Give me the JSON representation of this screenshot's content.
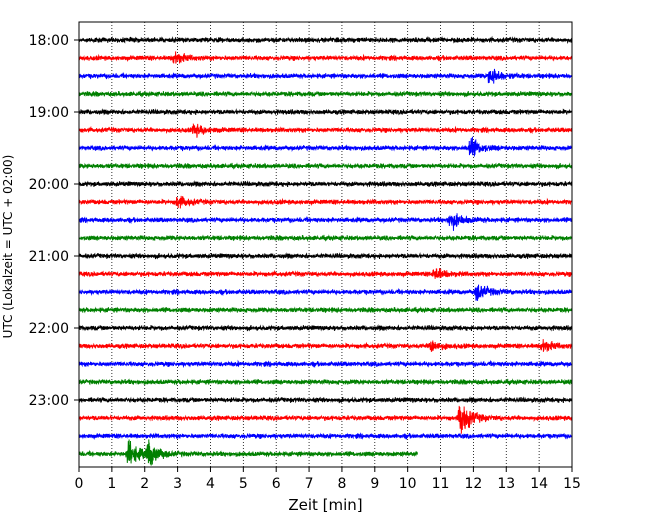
{
  "chart_data": {
    "type": "line",
    "title": "",
    "xlabel": "Zeit  [min]",
    "ylabel": "UTC (Lokalzeit = UTC + 02:00)",
    "xlim": [
      0,
      15
    ],
    "xticks": [
      0,
      1,
      2,
      3,
      4,
      5,
      6,
      7,
      8,
      9,
      10,
      11,
      12,
      13,
      14,
      15
    ],
    "xtick_labels": [
      "0",
      "1",
      "2",
      "3",
      "4",
      "5",
      "6",
      "7",
      "8",
      "9",
      "10",
      "11",
      "12",
      "13",
      "14",
      "15"
    ],
    "yticks": [
      {
        "row": 0,
        "label": "18:00"
      },
      {
        "row": 4,
        "label": "19:00"
      },
      {
        "row": 8,
        "label": "20:00"
      },
      {
        "row": 12,
        "label": "21:00"
      },
      {
        "row": 16,
        "label": "22:00"
      },
      {
        "row": 20,
        "label": "23:00"
      }
    ],
    "grid": "vertical dotted",
    "row_colors": [
      "#000000",
      "#ff0000",
      "#0000ff",
      "#008000"
    ],
    "trace_interval_min": 15,
    "rows": [
      {
        "start_utc": "18:00",
        "end_min": 15,
        "events": []
      },
      {
        "start_utc": "18:15",
        "end_min": 15,
        "events": [
          {
            "t": 2.9,
            "amp": 1.2
          }
        ]
      },
      {
        "start_utc": "18:30",
        "end_min": 15,
        "events": [
          {
            "t": 12.5,
            "amp": 1.8
          }
        ]
      },
      {
        "start_utc": "18:45",
        "end_min": 15,
        "events": []
      },
      {
        "start_utc": "19:00",
        "end_min": 15,
        "events": []
      },
      {
        "start_utc": "19:15",
        "end_min": 15,
        "events": [
          {
            "t": 3.5,
            "amp": 1.2
          }
        ]
      },
      {
        "start_utc": "19:30",
        "end_min": 15,
        "events": [
          {
            "t": 11.9,
            "amp": 1.8
          }
        ]
      },
      {
        "start_utc": "19:45",
        "end_min": 15,
        "events": []
      },
      {
        "start_utc": "20:00",
        "end_min": 15,
        "events": []
      },
      {
        "start_utc": "20:15",
        "end_min": 15,
        "events": [
          {
            "t": 3.0,
            "amp": 1.1
          }
        ]
      },
      {
        "start_utc": "20:30",
        "end_min": 15,
        "events": [
          {
            "t": 11.3,
            "amp": 1.8
          }
        ]
      },
      {
        "start_utc": "20:45",
        "end_min": 15,
        "events": []
      },
      {
        "start_utc": "21:00",
        "end_min": 15,
        "events": []
      },
      {
        "start_utc": "21:15",
        "end_min": 15,
        "events": [
          {
            "t": 10.8,
            "amp": 1.2
          }
        ]
      },
      {
        "start_utc": "21:30",
        "end_min": 15,
        "events": [
          {
            "t": 12.1,
            "amp": 1.8
          }
        ]
      },
      {
        "start_utc": "21:45",
        "end_min": 15,
        "events": []
      },
      {
        "start_utc": "22:00",
        "end_min": 15,
        "events": []
      },
      {
        "start_utc": "22:15",
        "end_min": 15,
        "events": [
          {
            "t": 10.7,
            "amp": 1.2
          },
          {
            "t": 14.1,
            "amp": 1.2
          }
        ]
      },
      {
        "start_utc": "22:30",
        "end_min": 15,
        "events": []
      },
      {
        "start_utc": "22:45",
        "end_min": 15,
        "events": []
      },
      {
        "start_utc": "23:00",
        "end_min": 15,
        "events": []
      },
      {
        "start_utc": "23:15",
        "end_min": 15,
        "events": [
          {
            "t": 11.6,
            "amp": 3.6
          }
        ]
      },
      {
        "start_utc": "23:30",
        "end_min": 15,
        "events": []
      },
      {
        "start_utc": "23:45",
        "end_min": 10.3,
        "events": [
          {
            "t": 1.5,
            "amp": 2.5
          },
          {
            "t": 2.1,
            "amp": 2.5
          }
        ]
      }
    ]
  }
}
